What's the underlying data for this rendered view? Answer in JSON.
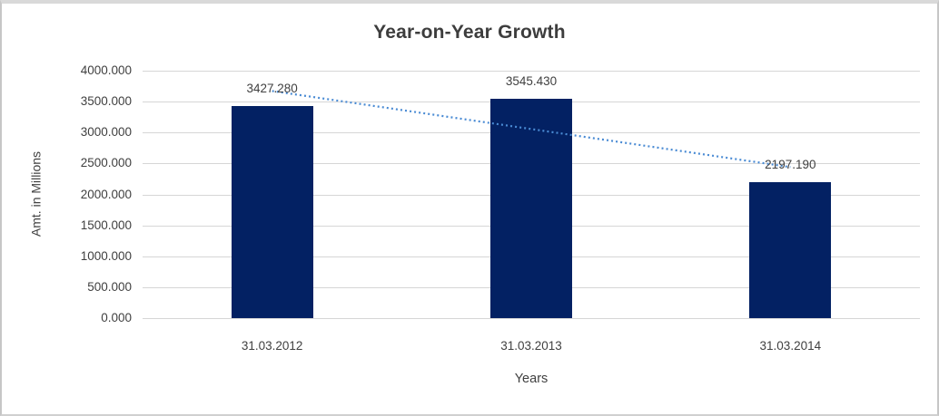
{
  "chart_data": {
    "type": "bar",
    "title": "Year-on-Year Growth",
    "categories": [
      "31.03.2012",
      "31.03.2013",
      "31.03.2014"
    ],
    "values": [
      3427.28,
      3545.43,
      2197.19
    ],
    "data_labels": [
      "3427.280",
      "3545.430",
      "2197.190"
    ],
    "xlabel": "Years",
    "ylabel": "Amt. in Millions",
    "ylim": [
      0,
      4000
    ],
    "ytick_step": 500,
    "ytick_labels": [
      "0.000",
      "500.000",
      "1000.000",
      "1500.000",
      "2000.000",
      "2500.000",
      "3000.000",
      "3500.000",
      "4000.000"
    ],
    "grid": true,
    "legend": "none",
    "trendline": {
      "type": "linear",
      "style": "dotted"
    }
  },
  "colors": {
    "bar": "#032163",
    "trendline": "#4a8bd4",
    "gridline": "#d6d6d6",
    "text": "#404040",
    "title": "#3d3d3d",
    "background": "#ffffff",
    "frame_border": "#cfcfcf"
  }
}
